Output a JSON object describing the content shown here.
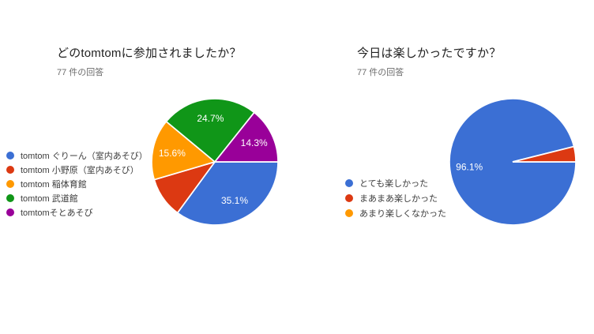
{
  "page": {
    "background": "#ffffff"
  },
  "palette": {
    "blue": "#3B6FD4",
    "red": "#DC3912",
    "orange": "#FF9900",
    "green": "#109618",
    "purple": "#990099"
  },
  "chart_data": [
    {
      "type": "pie",
      "title": "どのtomtomに参加されましたか？",
      "subtitle": "77 件の回答",
      "start_angle_deg": 0,
      "direction": "clockwise",
      "legend_position": "left-middle",
      "slices": [
        {
          "label": "tomtom ぐりーん（室内あそび）",
          "color": "#3B6FD4",
          "pct": 35.1,
          "pct_label": "35.1%"
        },
        {
          "label": "tomtom 小野原（室内あそび）",
          "color": "#DC3912",
          "pct": 10.4,
          "pct_label": ""
        },
        {
          "label": "tomtom 稲体育館",
          "color": "#FF9900",
          "pct": 15.6,
          "pct_label": "15.6%"
        },
        {
          "label": "tomtom 武道館",
          "color": "#109618",
          "pct": 24.7,
          "pct_label": "24.7%"
        },
        {
          "label": "tomtomそとあそび",
          "color": "#990099",
          "pct": 14.3,
          "pct_label": "14.3%"
        }
      ]
    },
    {
      "type": "pie",
      "title": "今日は楽しかったですか？",
      "subtitle": "77 件の回答",
      "start_angle_deg": 0,
      "direction": "clockwise",
      "legend_position": "left-middle",
      "slices": [
        {
          "label": "とても楽しかった",
          "color": "#3B6FD4",
          "pct": 96.1,
          "pct_label": "96.1%"
        },
        {
          "label": "まあまあ楽しかった",
          "color": "#DC3912",
          "pct": 3.9,
          "pct_label": ""
        },
        {
          "label": "あまり楽しくなかった",
          "color": "#FF9900",
          "pct": 0,
          "pct_label": ""
        }
      ]
    }
  ]
}
